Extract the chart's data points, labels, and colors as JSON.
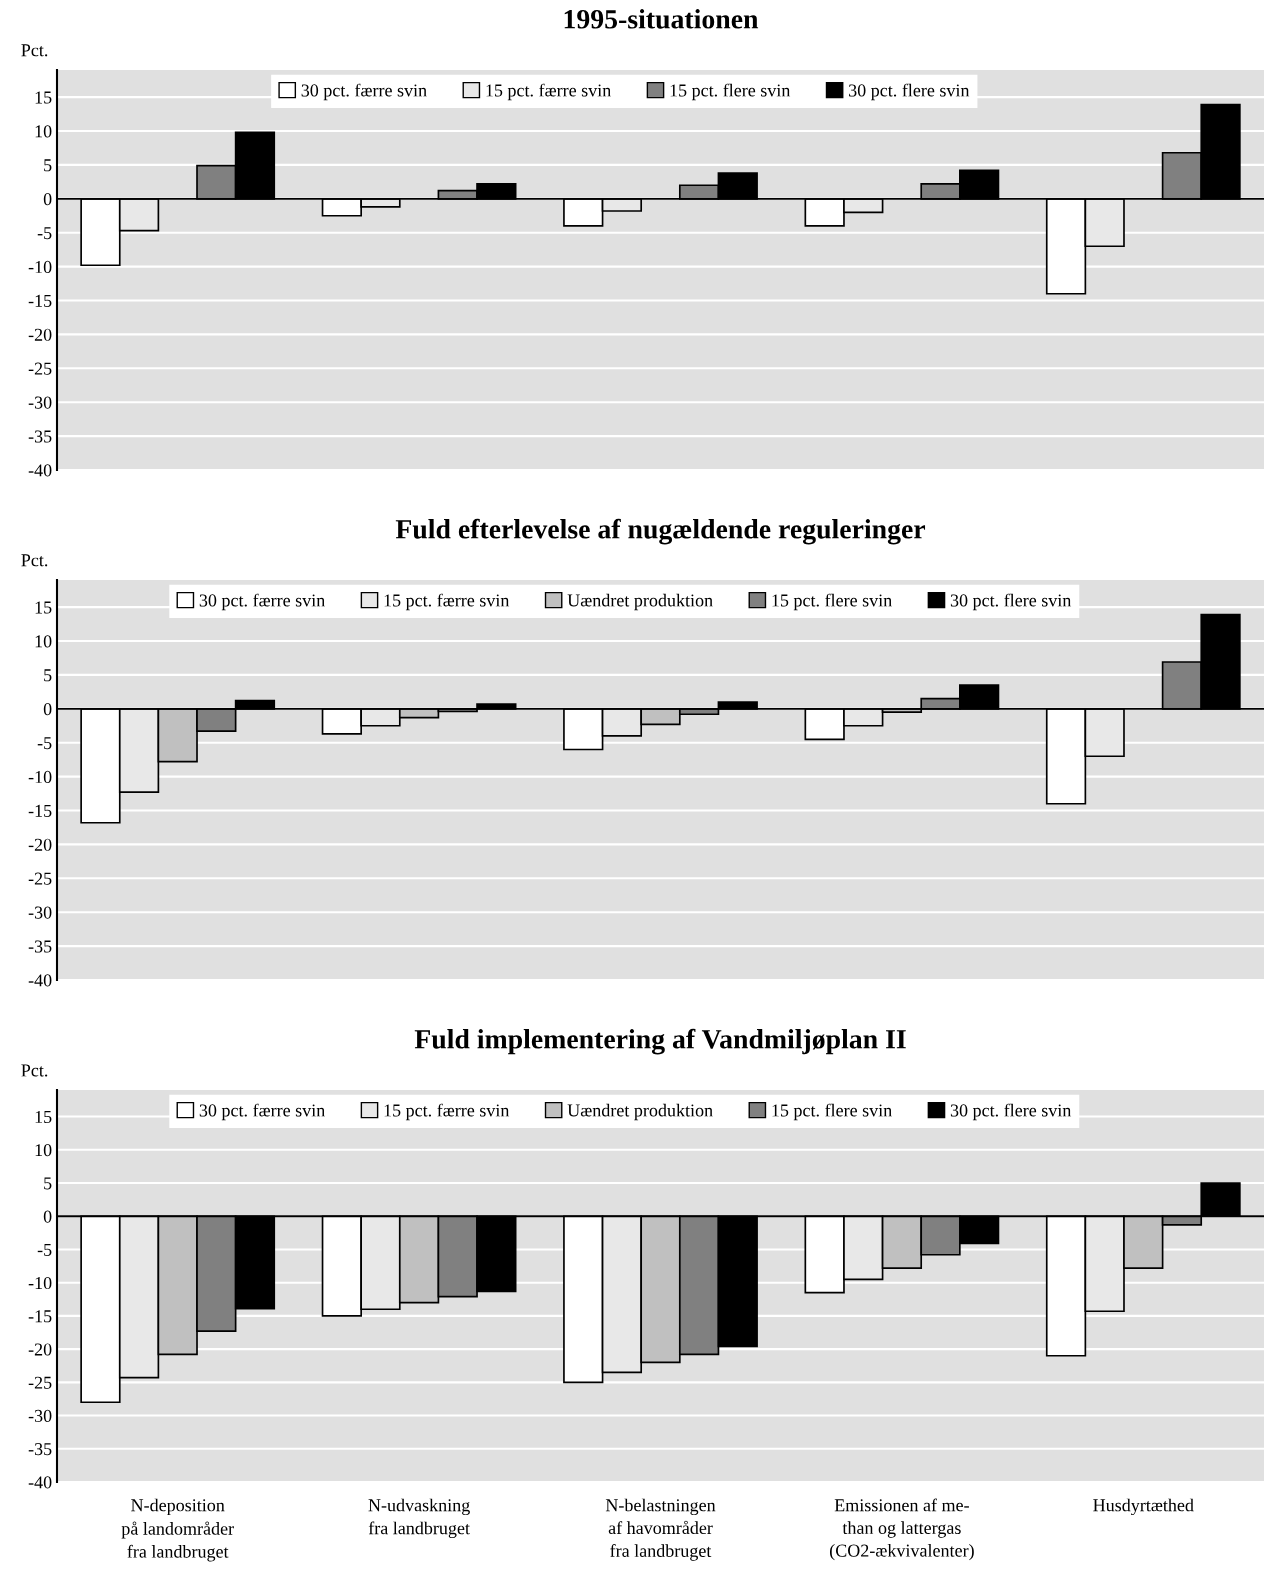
{
  "chart_data": [
    {
      "type": "bar",
      "title": "1995-situationen",
      "ylabel": "Pct.",
      "categories": [
        null,
        null,
        null,
        null,
        null
      ],
      "tick_labels": "y",
      "ylim": [
        -40,
        19
      ],
      "yticks": [
        -40,
        -35,
        -30,
        -25,
        -20,
        -15,
        -10,
        -5,
        0,
        5,
        10,
        15
      ],
      "grid": "y",
      "legend": "top",
      "ref_lines": [
        {
          "axis": "y",
          "value": 0,
          "color": "#000000"
        }
      ],
      "series": [
        {
          "name": "30 pct. færre svin",
          "color": "#ffffff",
          "values": [
            -9.8,
            -2.5,
            -4,
            -4,
            -14
          ]
        },
        {
          "name": "15 pct. færre svin",
          "color": "#e8e8e8",
          "values": [
            -4.7,
            -1.2,
            -1.8,
            -2,
            -7
          ]
        },
        {
          "color": "#c0c0c0",
          "values": [
            null,
            null,
            null,
            null,
            null
          ]
        },
        {
          "name": "15 pct. flere svin",
          "color": "#808080",
          "values": [
            4.9,
            1.2,
            2,
            2.2,
            6.8
          ]
        },
        {
          "name": "30 pct. flere svin",
          "color": "#000000",
          "values": [
            9.8,
            2.2,
            3.8,
            4.2,
            13.9
          ]
        }
      ]
    },
    {
      "type": "bar",
      "title": "Fuld efterlevelse af nugældende reguleringer",
      "ylabel": "Pct.",
      "categories": [
        null,
        null,
        null,
        null,
        null
      ],
      "tick_labels": "y",
      "ylim": [
        -40,
        19
      ],
      "yticks": [
        -40,
        -35,
        -30,
        -25,
        -20,
        -15,
        -10,
        -5,
        0,
        5,
        10,
        15
      ],
      "grid": "y",
      "legend": "top",
      "ref_lines": [
        {
          "axis": "y",
          "value": 0,
          "color": "#000000"
        }
      ],
      "series": [
        {
          "name": "30 pct. færre svin",
          "color": "#ffffff",
          "values": [
            -16.8,
            -3.7,
            -6,
            -4.5,
            -14
          ]
        },
        {
          "name": "15 pct. færre svin",
          "color": "#e8e8e8",
          "values": [
            -12.3,
            -2.5,
            -4,
            -2.5,
            -7
          ]
        },
        {
          "name": "Uændret produktion",
          "color": "#c0c0c0",
          "values": [
            -7.8,
            -1.3,
            -2.3,
            -0.5,
            null
          ]
        },
        {
          "name": "15 pct. flere svin",
          "color": "#808080",
          "values": [
            -3.3,
            -0.4,
            -0.8,
            1.5,
            6.9
          ]
        },
        {
          "name": "30 pct. flere svin",
          "color": "#000000",
          "values": [
            1.2,
            0.7,
            1,
            3.5,
            13.9
          ]
        }
      ]
    },
    {
      "type": "bar",
      "title": "Fuld implementering af Vandmiljøplan II",
      "ylabel": "Pct.",
      "categories": [
        "N-deposition\npå landområder\nfra landbruget",
        "N-udvaskning\nfra landbruget",
        "N-belastningen\naf havområder\nfra landbruget",
        "Emissionen af me-\nthan og lattergas\n(CO2-ækvivalenter)",
        "Husdyrtæthed"
      ],
      "ylim": [
        -40,
        19
      ],
      "yticks": [
        -40,
        -35,
        -30,
        -25,
        -20,
        -15,
        -10,
        -5,
        0,
        5,
        10,
        15
      ],
      "grid": "y",
      "legend": "top",
      "ref_lines": [
        {
          "axis": "y",
          "value": 0,
          "color": "#000000"
        }
      ],
      "series": [
        {
          "name": "30 pct. færre svin",
          "color": "#ffffff",
          "values": [
            -28,
            -15,
            -25,
            -11.5,
            -21
          ]
        },
        {
          "name": "15 pct. færre svin",
          "color": "#e8e8e8",
          "values": [
            -24.3,
            -14,
            -23.5,
            -9.5,
            -14.3
          ]
        },
        {
          "name": "Uændret produktion",
          "color": "#c0c0c0",
          "values": [
            -20.8,
            -13,
            -22,
            -7.8,
            -7.8
          ]
        },
        {
          "name": "15 pct. flere svin",
          "color": "#808080",
          "values": [
            -17.3,
            -12.1,
            -20.8,
            -5.8,
            -1.3
          ]
        },
        {
          "name": "30 pct. flere svin",
          "color": "#000000",
          "values": [
            -13.9,
            -11.3,
            -19.6,
            -4.1,
            5
          ]
        }
      ]
    }
  ]
}
